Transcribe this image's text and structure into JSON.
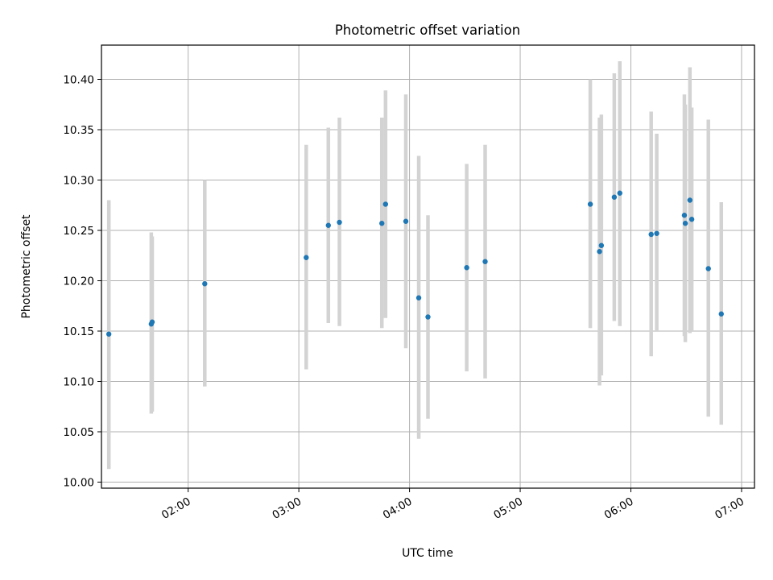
{
  "chart_data": {
    "type": "scatter",
    "title": "Photometric offset variation",
    "xlabel": "UTC time",
    "ylabel": "Photometric offset",
    "xlim": [
      "01:13",
      "07:07"
    ],
    "ylim": [
      9.994,
      10.434
    ],
    "x_ticks": [
      "02:00",
      "03:00",
      "04:00",
      "05:00",
      "06:00",
      "07:00"
    ],
    "y_ticks": [
      "10.00",
      "10.05",
      "10.10",
      "10.15",
      "10.20",
      "10.25",
      "10.30",
      "10.35",
      "10.40"
    ],
    "grid": true,
    "colors": {
      "points": "#1f77b4",
      "error_bars": "#d3d3d3"
    },
    "points": [
      {
        "x": "01:17",
        "y": 10.147,
        "y_low": 10.013,
        "y_high": 10.28
      },
      {
        "x": "01:40",
        "y": 10.157,
        "y_low": 10.068,
        "y_high": 10.248
      },
      {
        "x": "01:40.5",
        "y": 10.159,
        "y_low": 10.07,
        "y_high": 10.244
      },
      {
        "x": "02:09",
        "y": 10.197,
        "y_low": 10.095,
        "y_high": 10.3
      },
      {
        "x": "03:04",
        "y": 10.223,
        "y_low": 10.112,
        "y_high": 10.335
      },
      {
        "x": "03:16",
        "y": 10.255,
        "y_low": 10.158,
        "y_high": 10.352
      },
      {
        "x": "03:22",
        "y": 10.258,
        "y_low": 10.155,
        "y_high": 10.362
      },
      {
        "x": "03:45",
        "y": 10.257,
        "y_low": 10.153,
        "y_high": 10.362
      },
      {
        "x": "03:47",
        "y": 10.276,
        "y_low": 10.163,
        "y_high": 10.389
      },
      {
        "x": "03:58",
        "y": 10.259,
        "y_low": 10.133,
        "y_high": 10.385
      },
      {
        "x": "04:05",
        "y": 10.183,
        "y_low": 10.043,
        "y_high": 10.324
      },
      {
        "x": "04:10",
        "y": 10.164,
        "y_low": 10.063,
        "y_high": 10.265
      },
      {
        "x": "04:31",
        "y": 10.213,
        "y_low": 10.11,
        "y_high": 10.316
      },
      {
        "x": "04:41",
        "y": 10.219,
        "y_low": 10.103,
        "y_high": 10.335
      },
      {
        "x": "05:38",
        "y": 10.276,
        "y_low": 10.153,
        "y_high": 10.4
      },
      {
        "x": "05:43",
        "y": 10.229,
        "y_low": 10.096,
        "y_high": 10.362
      },
      {
        "x": "05:44",
        "y": 10.235,
        "y_low": 10.106,
        "y_high": 10.365
      },
      {
        "x": "05:51",
        "y": 10.283,
        "y_low": 10.16,
        "y_high": 10.406
      },
      {
        "x": "05:54",
        "y": 10.287,
        "y_low": 10.155,
        "y_high": 10.418
      },
      {
        "x": "06:11",
        "y": 10.246,
        "y_low": 10.125,
        "y_high": 10.368
      },
      {
        "x": "06:14",
        "y": 10.247,
        "y_low": 10.15,
        "y_high": 10.346
      },
      {
        "x": "06:29",
        "y": 10.265,
        "y_low": 10.145,
        "y_high": 10.385
      },
      {
        "x": "06:29.5",
        "y": 10.257,
        "y_low": 10.139,
        "y_high": 10.375
      },
      {
        "x": "06:32",
        "y": 10.28,
        "y_low": 10.148,
        "y_high": 10.412
      },
      {
        "x": "06:33",
        "y": 10.261,
        "y_low": 10.15,
        "y_high": 10.372
      },
      {
        "x": "06:42",
        "y": 10.212,
        "y_low": 10.065,
        "y_high": 10.36
      },
      {
        "x": "06:49",
        "y": 10.167,
        "y_low": 10.057,
        "y_high": 10.278
      }
    ]
  }
}
